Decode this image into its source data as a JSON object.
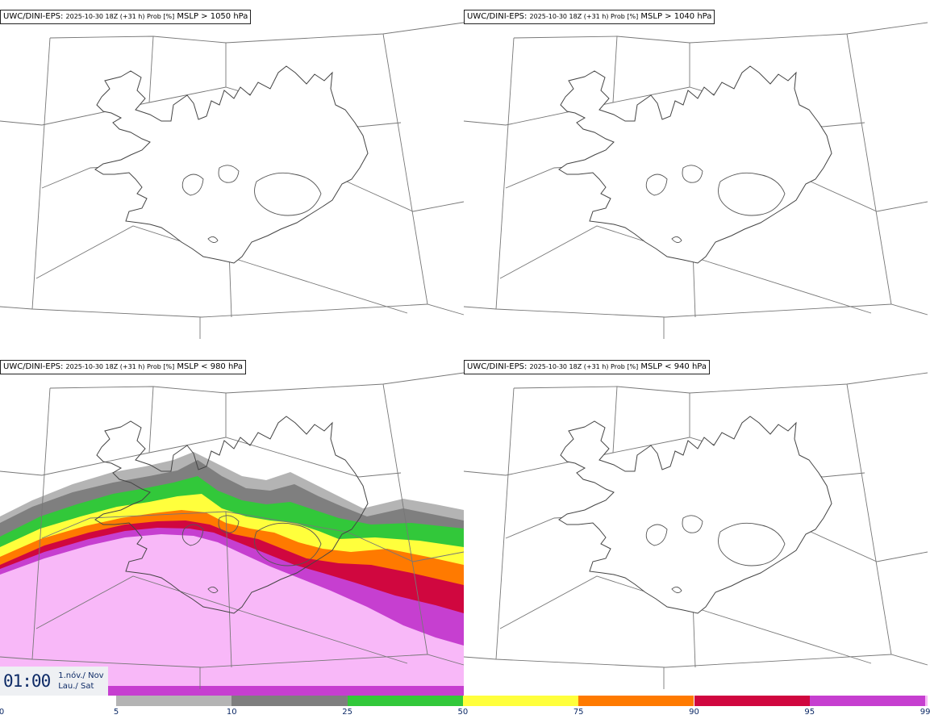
{
  "panels": [
    {
      "model": "UWC/DINI-EPS",
      "run": "2025-10-30 18Z (+31 h) Prob [%]",
      "field": "MSLP > 1050 hPa"
    },
    {
      "model": "UWC/DINI-EPS",
      "run": "2025-10-30 18Z (+31 h) Prob [%]",
      "field": "MSLP > 1040 hPa"
    },
    {
      "model": "UWC/DINI-EPS",
      "run": "2025-10-30 18Z (+31 h) Prob [%]",
      "field": "MSLP < 980 hPa"
    },
    {
      "model": "UWC/DINI-EPS",
      "run": "2025-10-30 18Z (+31 h) Prob [%]",
      "field": "MSLP < 940 hPa"
    }
  ],
  "valid_time": {
    "time": "01:00",
    "date_line1": "1.nóv./ Nov",
    "date_line2": "Lau./ Sat"
  },
  "legend": {
    "ticks": [
      "0",
      "5",
      "10",
      "25",
      "50",
      "75",
      "90",
      "95",
      "99"
    ],
    "colors": [
      "#ffffff",
      "#b4b4b4",
      "#7f7f7f",
      "#32c83a",
      "#ffff3c",
      "#ff7a00",
      "#d0073f",
      "#c63fd0",
      "#f8b8f8"
    ]
  }
}
